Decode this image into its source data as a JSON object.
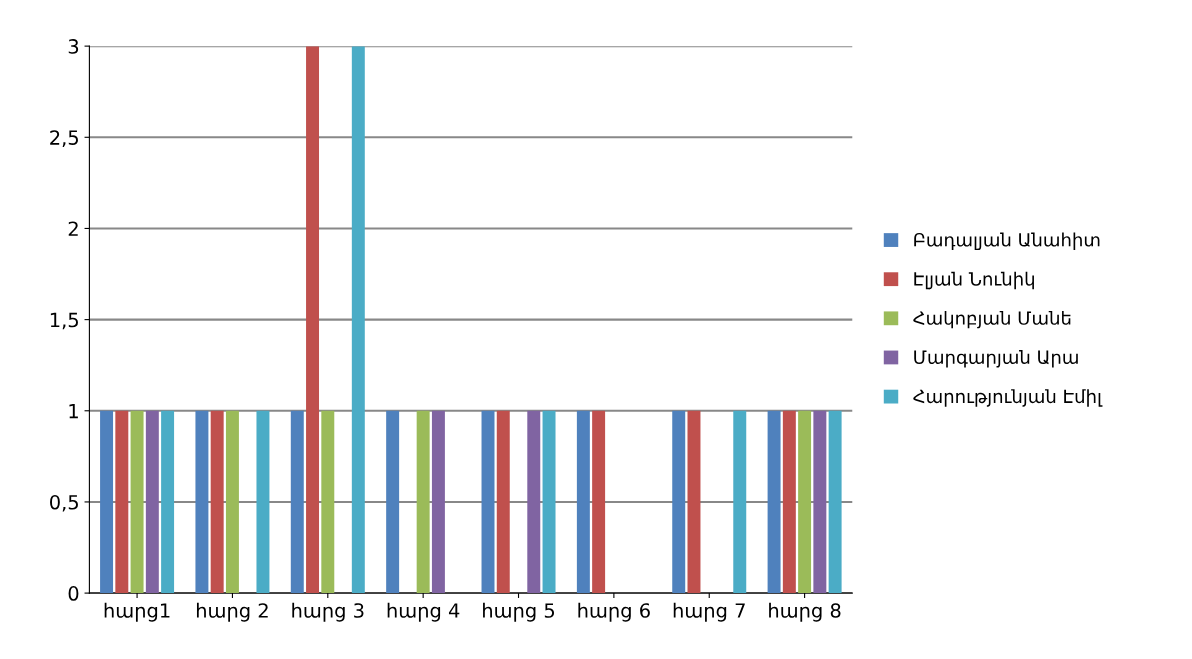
{
  "chart_data": {
    "type": "bar",
    "categories": [
      "հարց1",
      "հարց 2",
      "հարց 3",
      "հարց 4",
      "հարց 5",
      "հարց 6",
      "հարց 7",
      "հարց 8"
    ],
    "series": [
      {
        "name": "Բադալյան Անահիտ",
        "color": "#4f81bd",
        "values": [
          1,
          1,
          1,
          1,
          1,
          1,
          1,
          1
        ]
      },
      {
        "name": "Էլյան Նունիկ",
        "color": "#c0504d",
        "values": [
          1,
          1,
          3,
          0,
          1,
          1,
          1,
          1
        ]
      },
      {
        "name": "Հակոբյան Մանե",
        "color": "#9bbb59",
        "values": [
          1,
          1,
          1,
          1,
          0,
          0,
          0,
          1
        ]
      },
      {
        "name": "Մարգարյան Արա",
        "color": "#8064a2",
        "values": [
          1,
          0,
          0,
          1,
          1,
          0,
          0,
          1
        ]
      },
      {
        "name": "Հարությունյան Էմիլ",
        "color": "#4bacc6",
        "values": [
          1,
          1,
          3,
          0,
          1,
          0,
          1,
          1
        ]
      }
    ],
    "ylim": [
      0,
      3
    ],
    "yticks": [
      0,
      {
        "value": 0.5,
        "label": "0,5"
      },
      1,
      {
        "value": 1.5,
        "label": "1,5"
      },
      2,
      {
        "value": 2.5,
        "label": "2,5"
      },
      3
    ],
    "grid": "y",
    "legend": "right"
  }
}
